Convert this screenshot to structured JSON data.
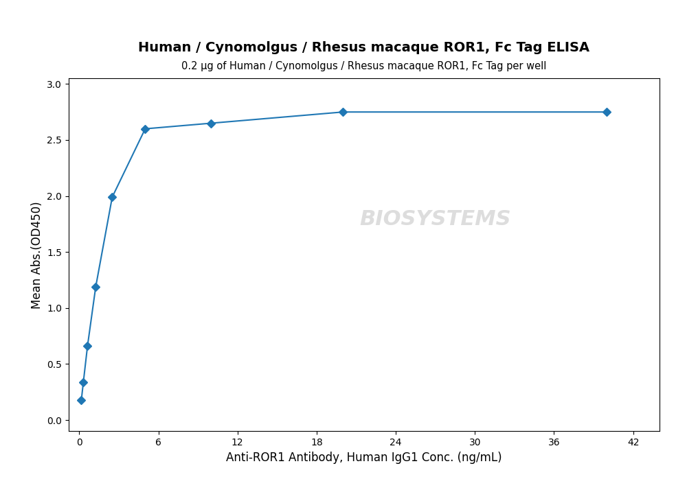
{
  "chart_data": {
    "type": "line",
    "title": "Human / Cynomolgus / Rhesus macaque ROR1, Fc Tag ELISA",
    "subtitle": "0.2 µg of Human / Cynomolgus / Rhesus macaque ROR1, Fc Tag per well",
    "x_label": "Anti-ROR1 Antibody, Human IgG1 Conc. (ng/mL)",
    "y_label": "Mean Abs.(OD450)",
    "x": [
      0.156,
      0.313,
      0.625,
      1.25,
      2.5,
      5.0,
      10.0,
      20.0,
      40.0
    ],
    "values": [
      0.175,
      0.34,
      0.66,
      1.19,
      1.99,
      2.6,
      2.65,
      2.75,
      2.75
    ],
    "marker": "diamond",
    "line_style": "solid",
    "annotations": [
      {
        "text": "BIOSYSTEMS"
      }
    ],
    "xlim": [
      -0.8,
      44
    ],
    "ylim": [
      -0.1,
      3.05
    ],
    "xticks": [
      0,
      6,
      12,
      18,
      24,
      30,
      36,
      42
    ],
    "yticks": [
      0.0,
      0.5,
      1.0,
      1.5,
      2.0,
      2.5,
      3.0
    ],
    "grid": false
  }
}
